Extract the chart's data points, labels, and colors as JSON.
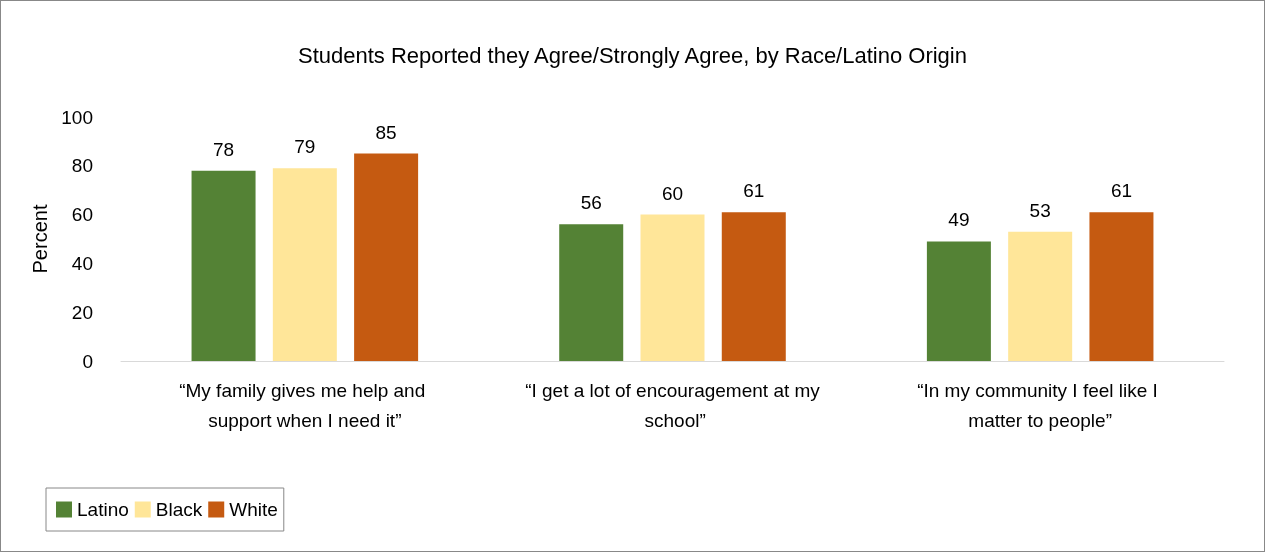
{
  "chart_data": {
    "type": "bar",
    "title": "Students Reported they Agree/Strongly Agree, by Race/Latino Origin",
    "ylabel": "Percent",
    "categories": [
      "“My family gives me help and support when I need it”",
      "“I get a lot of encouragement at my school”",
      "“In my community I feel like I matter to people”"
    ],
    "series": [
      {
        "name": "Latino",
        "color": "#548235",
        "values": [
          78,
          56,
          49
        ]
      },
      {
        "name": "Black",
        "color": "#ffe699",
        "values": [
          79,
          60,
          53
        ]
      },
      {
        "name": "White",
        "color": "#c55a11",
        "values": [
          85,
          61,
          61
        ]
      }
    ],
    "ylim": [
      0,
      100
    ],
    "yticks": [
      0,
      20,
      40,
      60,
      80,
      100
    ],
    "grid": false,
    "legend": "bottom left",
    "data_labels": true
  }
}
